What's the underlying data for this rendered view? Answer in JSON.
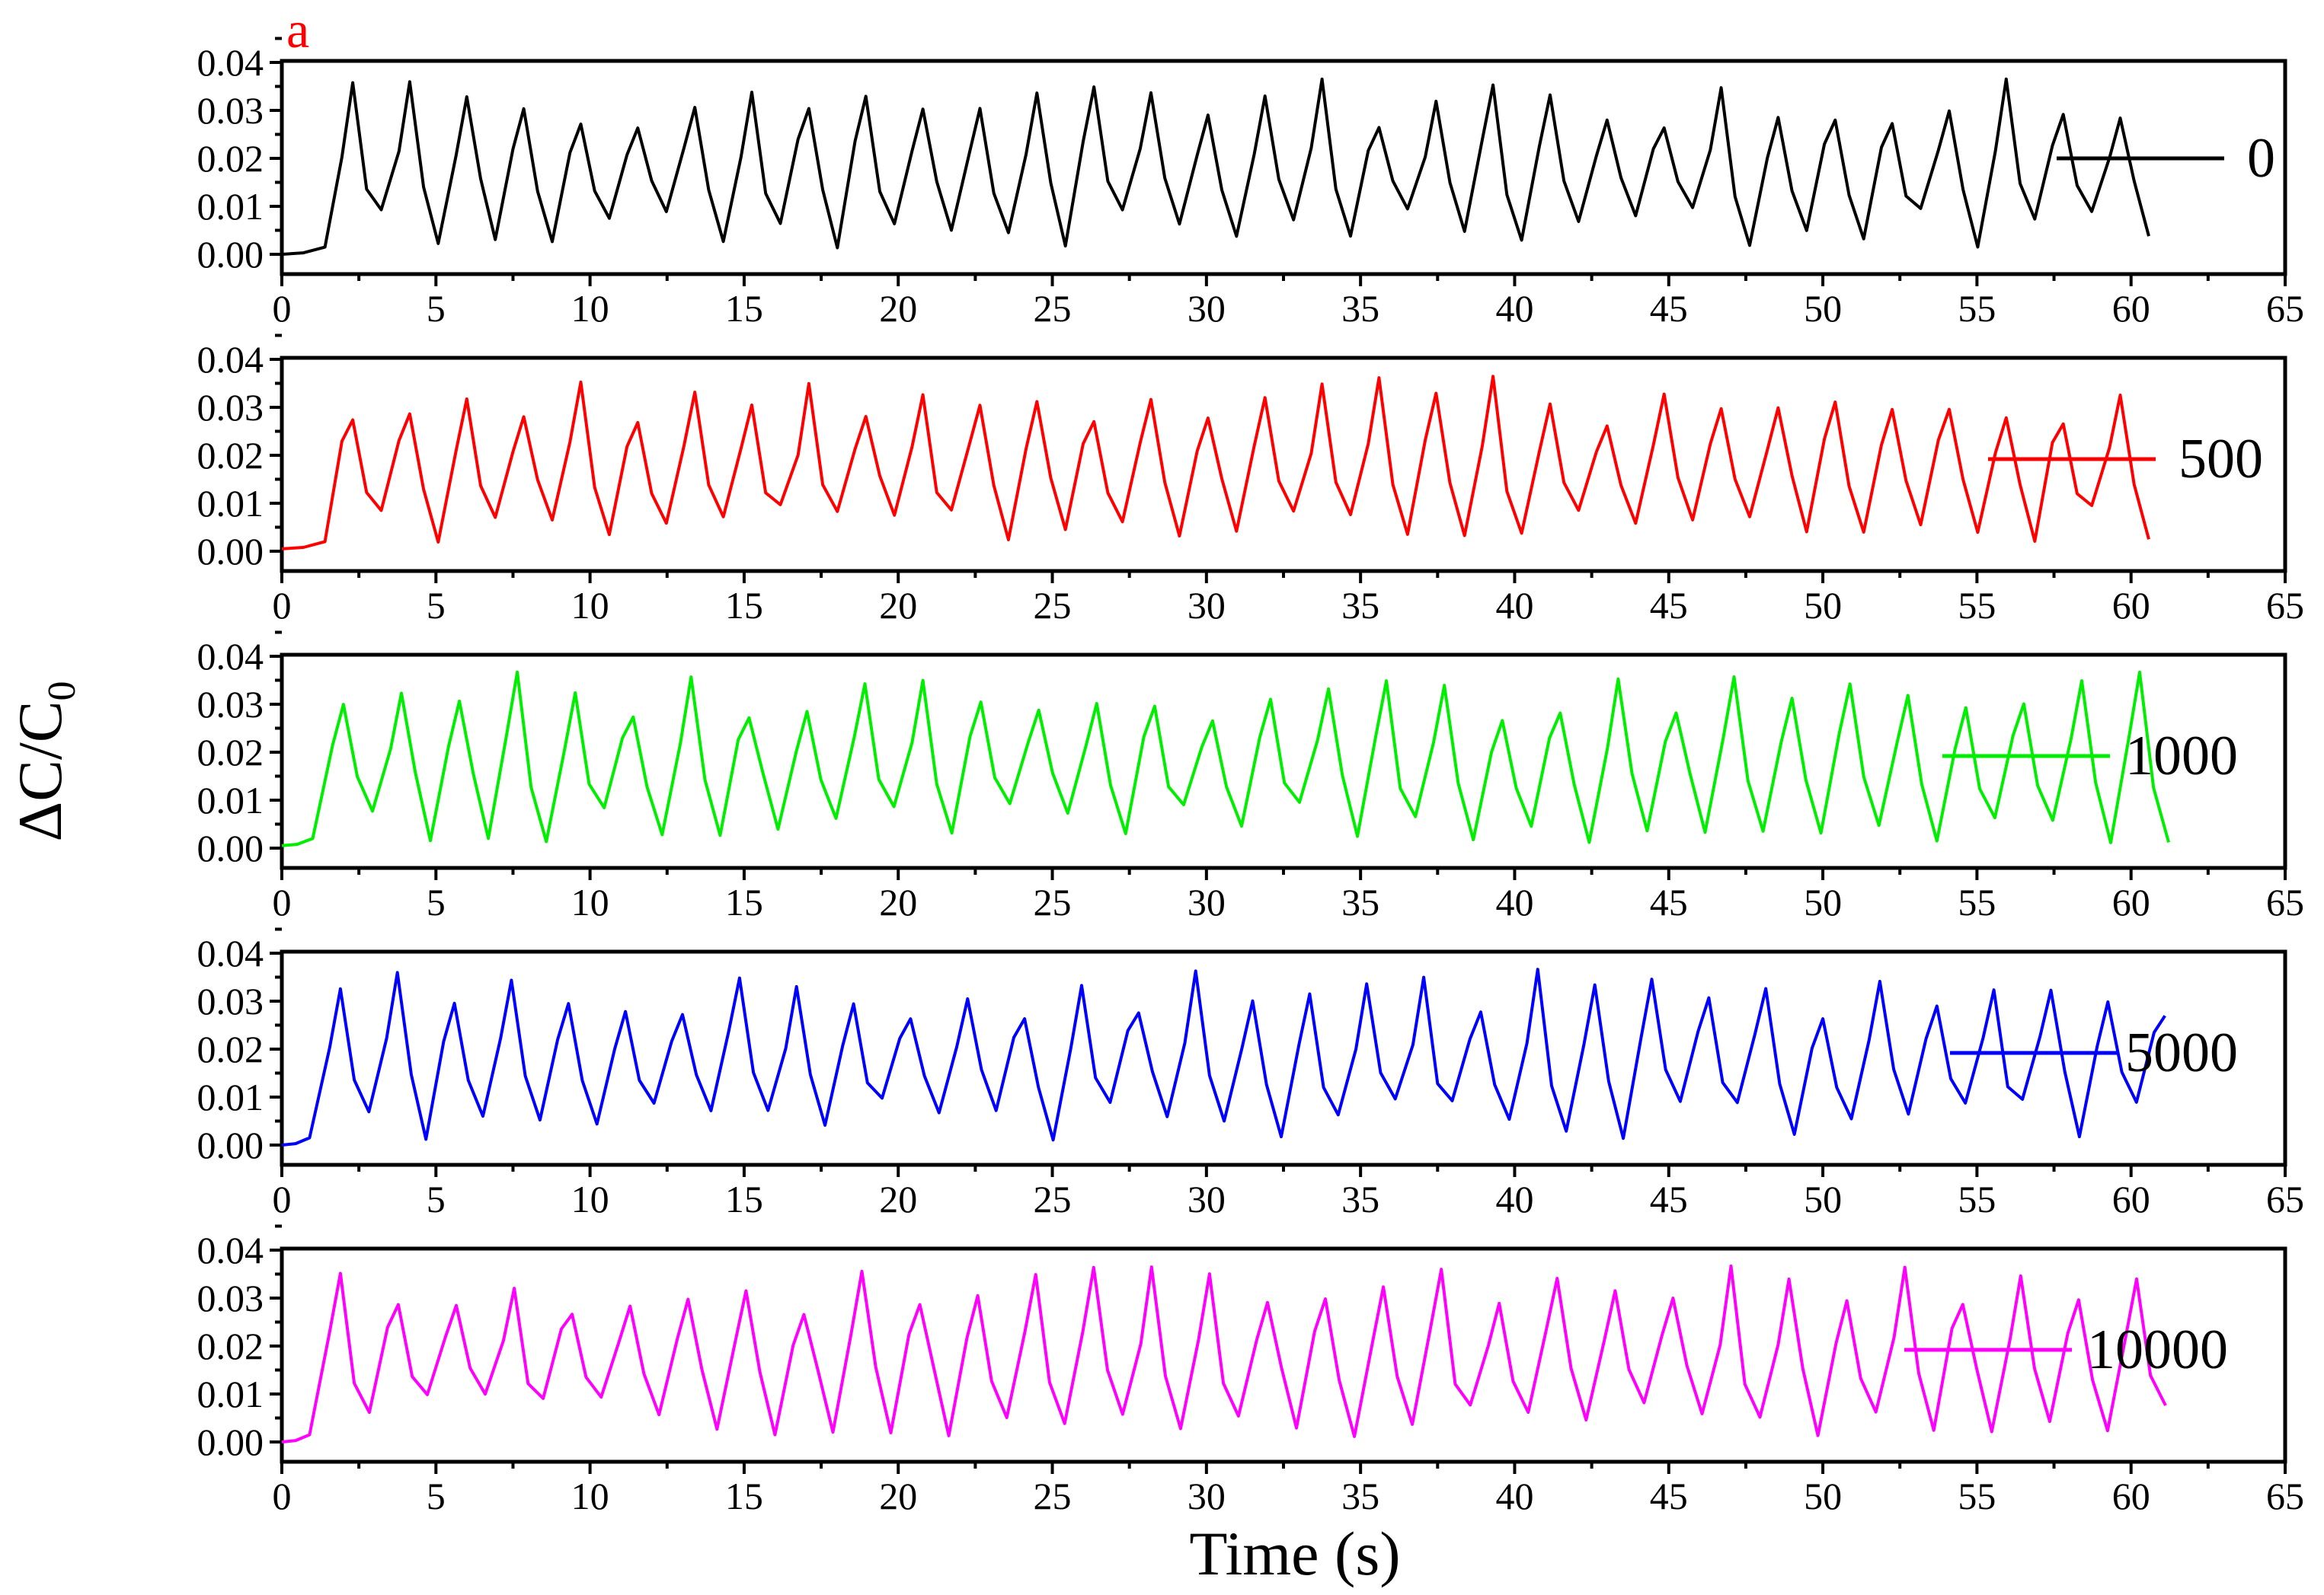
{
  "panel_label": "a",
  "colors": {
    "panel_label": "#ff0000",
    "axes": "#000000"
  },
  "chart_data": {
    "type": "line",
    "layout": "stacked-panels",
    "xlabel": "Time (s)",
    "ylabel_main": "ΔC/C",
    "ylabel_sub": "0",
    "xlim": [
      0,
      65
    ],
    "ylim": [
      0,
      0.04
    ],
    "xticks": [
      "0",
      "5",
      "10",
      "15",
      "20",
      "25",
      "30",
      "35",
      "40",
      "45",
      "50",
      "55",
      "60",
      "65"
    ],
    "yticks": [
      "0.00",
      "0.01",
      "0.02",
      "0.03",
      "0.04"
    ],
    "grid": false,
    "series": [
      {
        "name": "0",
        "color": "#000000",
        "period": 1.85,
        "peak_first": 2.3,
        "base": 0.0,
        "rise_start": 1.4
      },
      {
        "name": "500",
        "color": "#ff0000",
        "period": 1.85,
        "peak_first": 2.3,
        "base": 0.0005,
        "rise_start": 1.4
      },
      {
        "name": "1000",
        "color": "#00ee00",
        "period": 1.88,
        "peak_first": 2.0,
        "base": 0.0005,
        "rise_start": 1.0
      },
      {
        "name": "5000",
        "color": "#0000ff",
        "period": 1.85,
        "peak_first": 1.9,
        "base": 0.0,
        "rise_start": 0.9
      },
      {
        "name": "10000",
        "color": "#ff00ff",
        "period": 1.88,
        "peak_first": 1.9,
        "base": 0.0,
        "rise_start": 0.9
      }
    ]
  }
}
